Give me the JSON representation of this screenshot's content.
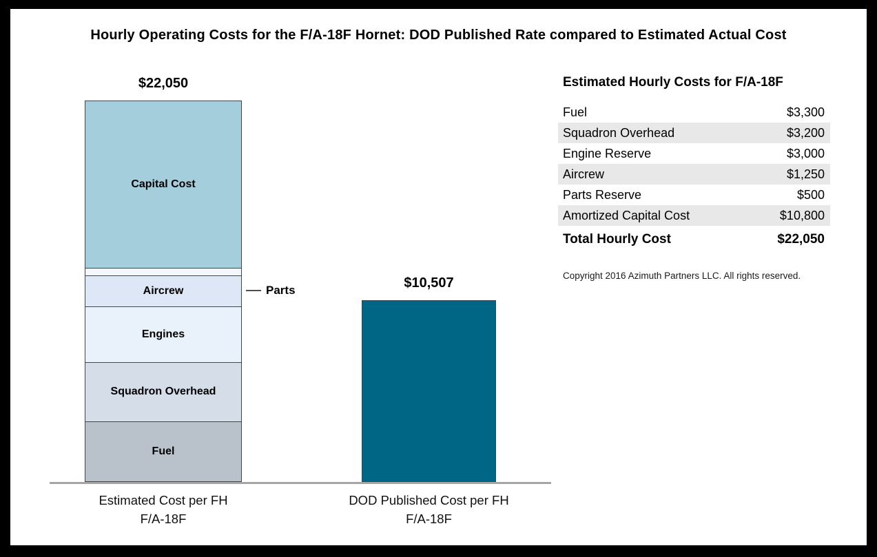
{
  "page": {
    "title": "Hourly Operating Costs for the F/A-18F Hornet:  DOD Published Rate compared to Estimated Actual Cost"
  },
  "chart_data": {
    "type": "bar",
    "subtype": "stacked-column-comparison",
    "unit": "USD per flight hour",
    "baseline_axis": true,
    "axis_color": "#a6a6a6",
    "callout": {
      "label": "Parts",
      "points_to": "Parts segment of estimated bar"
    },
    "bars": [
      {
        "id": "estimated",
        "label_lines": [
          "Estimated Cost per FH",
          "F/A-18F"
        ],
        "total": 22050,
        "total_label": "$22,050",
        "segments_bottom_to_top": [
          {
            "name": "Fuel",
            "value": 3300,
            "color": "#b9c1cb",
            "show_label": true
          },
          {
            "name": "Squadron Overhead",
            "value": 3200,
            "color": "#d4dde8",
            "show_label": true
          },
          {
            "name": "Engines",
            "value": 3000,
            "color": "#e9f1fb",
            "show_label": true
          },
          {
            "name": "Aircrew",
            "value": 1250,
            "color": "#dde7f6",
            "show_label": true
          },
          {
            "name": "Parts",
            "value": 500,
            "color": "#f4f7fb",
            "show_label": false
          },
          {
            "name": "Capital Cost",
            "value": 10800,
            "color": "#a5cedd",
            "show_label": true
          }
        ]
      },
      {
        "id": "dod",
        "label_lines": [
          "DOD Published Cost per FH",
          "F/A-18F"
        ],
        "total": 10507,
        "total_label": "$10,507",
        "segments_bottom_to_top": [
          {
            "name": "DOD Published Rate",
            "value": 10507,
            "color": "#006685",
            "show_label": false
          }
        ]
      }
    ]
  },
  "table": {
    "title": "Estimated Hourly Costs for F/A-18F",
    "rows": [
      {
        "label": "Fuel",
        "value": "$3,300",
        "shaded": false
      },
      {
        "label": "Squadron Overhead",
        "value": "$3,200",
        "shaded": true
      },
      {
        "label": "Engine Reserve",
        "value": "$3,000",
        "shaded": false
      },
      {
        "label": "Aircrew",
        "value": "$1,250",
        "shaded": true
      },
      {
        "label": "Parts Reserve",
        "value": "$500",
        "shaded": false
      },
      {
        "label": "Amortized Capital Cost",
        "value": "$10,800",
        "shaded": true
      }
    ],
    "total_row": {
      "label": "Total Hourly Cost",
      "value": "$22,050"
    },
    "copyright": "Copyright 2016 Azimuth Partners LLC. All rights reserved.",
    "shaded_row_color": "#e8e8e8"
  }
}
